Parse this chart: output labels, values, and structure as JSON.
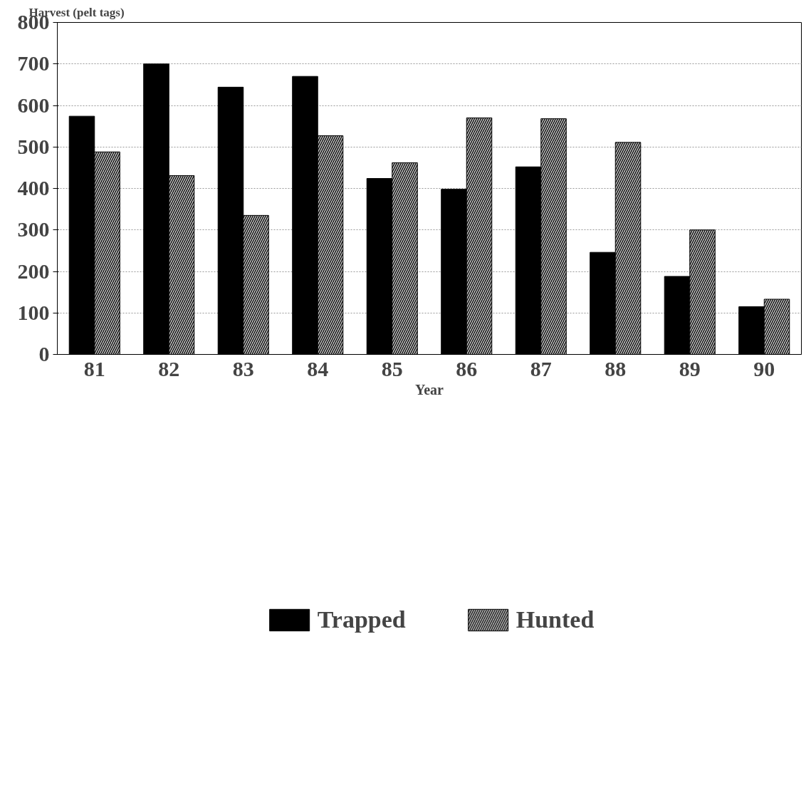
{
  "chart_data": {
    "type": "bar",
    "ylabel": "Harvest (pelt tags)",
    "xlabel": "Year",
    "categories": [
      "81",
      "82",
      "83",
      "84",
      "85",
      "86",
      "87",
      "88",
      "89",
      "90"
    ],
    "series": [
      {
        "name": "Trapped",
        "color": "#000000",
        "values": [
          574,
          700,
          644,
          670,
          424,
          398,
          452,
          246,
          188,
          115
        ]
      },
      {
        "name": "Hunted",
        "color": "#c8c8c8",
        "values": [
          488,
          431,
          335,
          527,
          462,
          570,
          568,
          511,
          300,
          133
        ]
      }
    ],
    "ylim": [
      0,
      800
    ],
    "yticks": [
      0,
      100,
      200,
      300,
      400,
      500,
      600,
      700,
      800
    ],
    "grid": "y",
    "legend": "bottom"
  }
}
